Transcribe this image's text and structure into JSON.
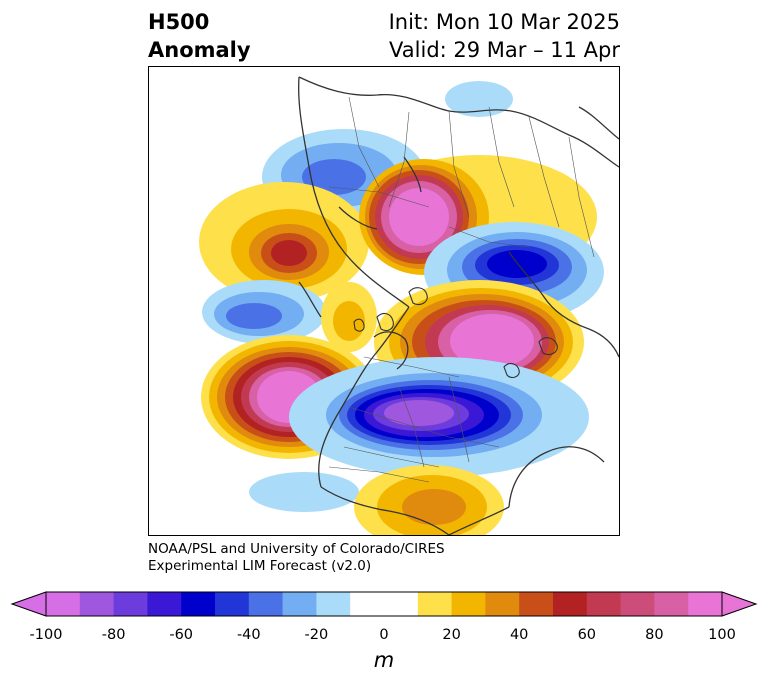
{
  "title": {
    "left_line1": "H500",
    "left_line2": "Anomaly",
    "right_line1": "Init: Mon 10 Mar 2025",
    "right_line2": "Valid: 29 Mar – 11 Apr"
  },
  "credit": {
    "line1": "NOAA/PSL and University of Colorado/CIRES",
    "line2": "Experimental LIM Forecast (v2.0)"
  },
  "colorbar": {
    "unit": "m",
    "ticks": [
      "-100",
      "-80",
      "-60",
      "-40",
      "-20",
      "0",
      "20",
      "40",
      "60",
      "80",
      "100"
    ],
    "colors": [
      "#d66ee6",
      "#a057e0",
      "#6c3ddc",
      "#3b18d6",
      "#0000cd",
      "#2236d8",
      "#4a72e6",
      "#73adf2",
      "#aadcfa",
      "#ffffff",
      "#ffffff",
      "#fde04a",
      "#f2b600",
      "#e08a0e",
      "#c85018",
      "#b22222",
      "#c23a52",
      "#cd4d7a",
      "#d860a4",
      "#e874d6"
    ],
    "extend_low_color": "#d66ee6",
    "extend_high_color": "#e874d6"
  },
  "map": {
    "projection": "north-polar-stereographic",
    "region": "Northern Hemisphere",
    "anomaly_centers": [
      {
        "region": "Siberia / Arctic (upper)",
        "anomaly_m": 100
      },
      {
        "region": "North Pacific / Alaska",
        "anomaly_m": 100
      },
      {
        "region": "Western Europe (right)",
        "anomaly_m": 100
      },
      {
        "region": "Canada / Greenland",
        "anomaly_m": -100
      },
      {
        "region": "East Asia / Japan",
        "anomaly_m": -60
      },
      {
        "region": "Eastern Siberia",
        "anomaly_m": -40
      },
      {
        "region": "Central Asia",
        "anomaly_m": 60
      },
      {
        "region": "Atlantic / Southeastern US",
        "anomaly_m": 40
      }
    ]
  }
}
